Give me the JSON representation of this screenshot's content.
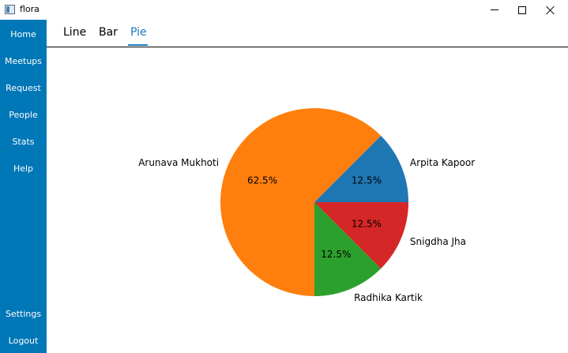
{
  "window": {
    "title": "flora"
  },
  "sidebar": {
    "items": [
      {
        "label": "Home"
      },
      {
        "label": "Meetups"
      },
      {
        "label": "Request"
      },
      {
        "label": "People"
      },
      {
        "label": "Stats"
      },
      {
        "label": "Help"
      }
    ],
    "bottom_items": [
      {
        "label": "Settings"
      },
      {
        "label": "Logout"
      }
    ],
    "color": "#0077b6"
  },
  "tabs": [
    {
      "label": "Line"
    },
    {
      "label": "Bar"
    },
    {
      "label": "Pie",
      "active": true
    }
  ],
  "chart_data": {
    "type": "pie",
    "slices": [
      {
        "label": "Arpita Kapoor",
        "value": 12.5,
        "pct_label": "12.5%",
        "color": "#1f77b4"
      },
      {
        "label": "Arunava Mukhoti",
        "value": 62.5,
        "pct_label": "62.5%",
        "color": "#ff7f0e"
      },
      {
        "label": "Radhika Kartik",
        "value": 12.5,
        "pct_label": "12.5%",
        "color": "#2ca02c"
      },
      {
        "label": "Snigdha Jha",
        "value": 12.5,
        "pct_label": "12.5%",
        "color": "#d62728"
      }
    ],
    "start_angle_deg": 0,
    "direction": "counterclockwise"
  }
}
